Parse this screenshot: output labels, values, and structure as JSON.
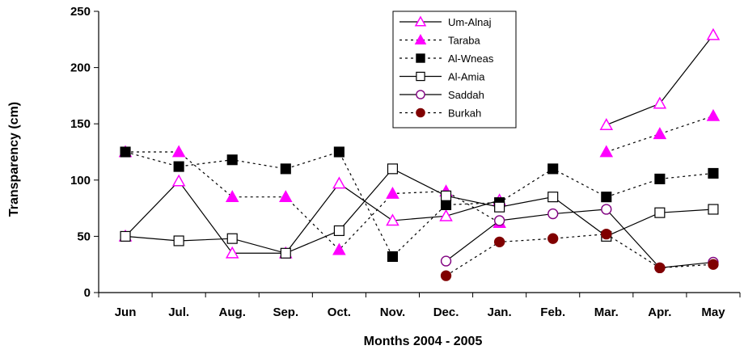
{
  "chart_data": {
    "type": "line",
    "title": "",
    "xlabel": "Months  2004  -  2005",
    "ylabel": "Transparency  (cm)",
    "categories": [
      "Jun",
      "Jul.",
      "Aug.",
      "Sep.",
      "Oct.",
      "Nov.",
      "Dec.",
      "Jan.",
      "Feb.",
      "Mar.",
      "Apr.",
      "May"
    ],
    "ylim": [
      0,
      250
    ],
    "yticks": [
      0,
      50,
      100,
      150,
      200,
      250
    ],
    "grid": false,
    "legend_position": "top-right",
    "series": [
      {
        "name": "Um-Alnaj",
        "color": "#ff00ff",
        "line": "solid",
        "marker": "triangle-open",
        "values": [
          50,
          99,
          35,
          35,
          97,
          64,
          68,
          82,
          null,
          149,
          168,
          229
        ]
      },
      {
        "name": "Taraba",
        "color": "#ff00ff",
        "line": "dotted",
        "marker": "triangle-filled",
        "values": [
          125,
          125,
          85,
          85,
          38,
          88,
          90,
          62,
          null,
          125,
          141,
          157
        ]
      },
      {
        "name": "Al-Wneas",
        "color": "#000000",
        "line": "dotted",
        "marker": "square-filled",
        "values": [
          125,
          112,
          118,
          110,
          125,
          32,
          78,
          80,
          110,
          85,
          101,
          106
        ]
      },
      {
        "name": "Al-Amia",
        "color": "#000000",
        "line": "solid",
        "marker": "square-open",
        "values": [
          50,
          46,
          48,
          35,
          55,
          110,
          86,
          76,
          85,
          50,
          71,
          74
        ]
      },
      {
        "name": "Saddah",
        "color": "#800080",
        "line": "solid",
        "marker": "circle-open",
        "values": [
          null,
          null,
          null,
          null,
          null,
          null,
          28,
          64,
          70,
          74,
          22,
          27
        ]
      },
      {
        "name": "Burkah",
        "color": "#800000",
        "line": "dotted",
        "marker": "circle-filled",
        "values": [
          null,
          null,
          null,
          null,
          null,
          null,
          15,
          45,
          48,
          52,
          22,
          25
        ]
      }
    ]
  }
}
